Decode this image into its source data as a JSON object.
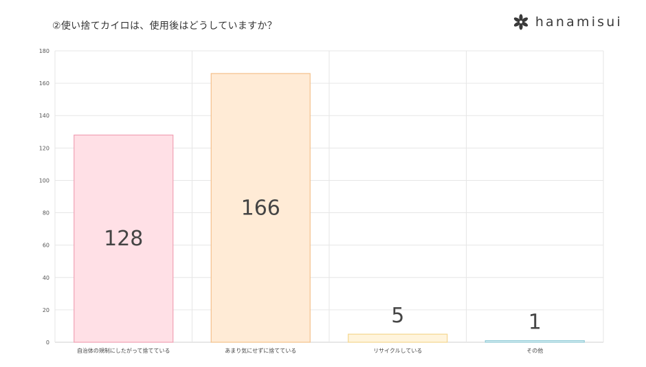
{
  "page_title": "②使い捨てカイロは、使用後はどうしていますか？",
  "brand": {
    "name": "hanamisui",
    "logo_icon": "flower-logo-icon"
  },
  "colors": {
    "bar_fills": [
      "#ffe0e6",
      "#ffebd6",
      "#fff4dc",
      "#dff2f5"
    ],
    "bar_strokes": [
      "#f0a0b4",
      "#f4c08a",
      "#f4d68e",
      "#8fcbd6"
    ],
    "grid": "#e6e6e6"
  },
  "chart_data": {
    "type": "bar",
    "categories": [
      "自治体の規制にしたがって捨てている",
      "あまり気にせずに捨てている",
      "リサイクルしている",
      "その他"
    ],
    "values": [
      128,
      166,
      5,
      1
    ],
    "ylim": [
      0,
      180
    ],
    "yticks": [
      0,
      20,
      40,
      60,
      80,
      100,
      120,
      140,
      160,
      180
    ],
    "grid": true,
    "data_labels": [
      "128",
      "166",
      "5",
      "1"
    ]
  }
}
